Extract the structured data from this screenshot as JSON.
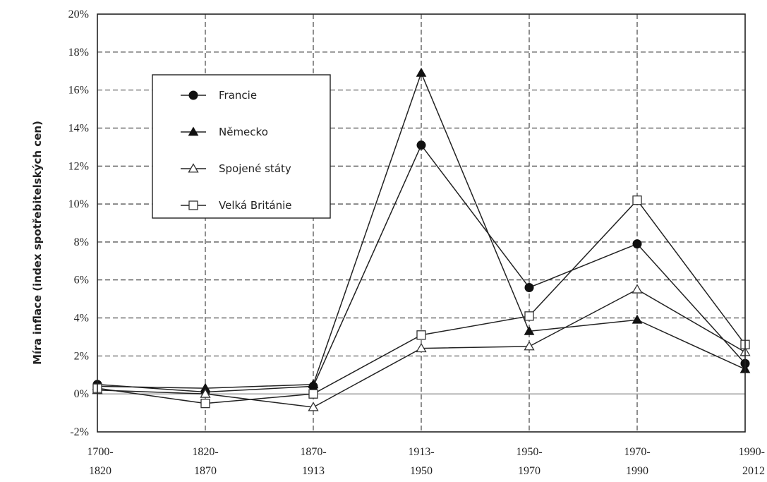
{
  "chart_data": {
    "type": "line",
    "title": "",
    "xlabel": "",
    "ylabel": "Míra inflace (index spotřebitelských cen)",
    "categories": [
      [
        "1700-",
        "1820"
      ],
      [
        "1820-",
        "1870"
      ],
      [
        "1870-",
        "1913"
      ],
      [
        "1913-",
        "1950"
      ],
      [
        "1950-",
        "1970"
      ],
      [
        "1970-",
        "1990"
      ],
      [
        "1990-",
        "2012"
      ]
    ],
    "ylim": [
      -2,
      20
    ],
    "yticks": [
      -2,
      0,
      2,
      4,
      6,
      8,
      10,
      12,
      14,
      16,
      18,
      20
    ],
    "ytick_labels": [
      "-2%",
      "0%",
      "2%",
      "4%",
      "6%",
      "8%",
      "10%",
      "12%",
      "14%",
      "16%",
      "18%",
      "20%"
    ],
    "grid": true,
    "legend_position": "top-left",
    "series": [
      {
        "name": "Francie",
        "marker": "filled-circle",
        "values": [
          0.5,
          0.1,
          0.4,
          13.1,
          5.6,
          7.9,
          1.6
        ]
      },
      {
        "name": "Německo",
        "marker": "filled-triangle",
        "values": [
          0.4,
          0.3,
          0.5,
          16.9,
          3.3,
          3.9,
          1.3
        ]
      },
      {
        "name": "Spojené státy",
        "marker": "open-triangle",
        "values": [
          0.2,
          0.0,
          -0.7,
          2.4,
          2.5,
          5.5,
          2.2
        ]
      },
      {
        "name": "Velká Británie",
        "marker": "open-square",
        "values": [
          0.3,
          -0.5,
          0.0,
          3.1,
          4.1,
          10.2,
          2.6
        ]
      }
    ]
  }
}
